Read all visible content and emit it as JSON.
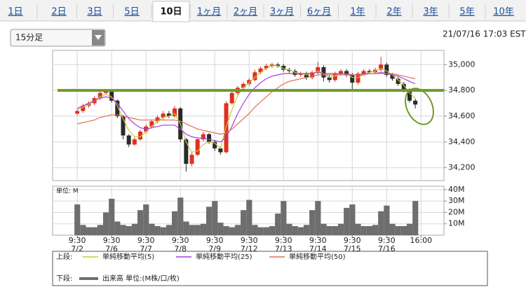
{
  "tabs": [
    "1日",
    "2日",
    "3日",
    "5日",
    "10日",
    "1ヶ月",
    "2ヶ月",
    "3ヶ月",
    "6ヶ月",
    "1年",
    "2年",
    "3年",
    "5年",
    "10年"
  ],
  "active_tab": 4,
  "interval_select": "15分足",
  "timestamp": "21/07/16 17:03 EST",
  "legend": {
    "upper_label": "上段:",
    "lower_label": "下段:"
  },
  "chart_data": [
    {
      "type": "candlestick",
      "x": [
        0,
        1,
        2,
        3,
        4,
        5,
        6,
        7,
        8,
        9,
        10,
        11,
        12,
        13,
        14,
        15,
        16,
        17,
        18,
        19,
        20,
        21,
        22,
        23,
        24,
        25,
        26,
        27,
        28,
        29,
        30,
        31,
        32,
        33,
        34,
        35,
        36,
        37,
        38,
        39,
        40,
        41,
        42,
        43,
        44,
        45,
        46,
        47,
        48,
        49,
        50,
        51,
        52,
        53,
        54,
        55,
        56,
        57,
        58,
        59
      ],
      "xlim": [
        -4.3,
        64
      ],
      "open": [
        34620,
        34640,
        34680,
        34700,
        34740,
        34780,
        34790,
        34720,
        34600,
        34450,
        34380,
        34420,
        34480,
        34520,
        34560,
        34590,
        34620,
        34600,
        34660,
        34420,
        34230,
        34300,
        34420,
        34460,
        34400,
        34350,
        34320,
        34700,
        34780,
        34820,
        34850,
        34880,
        34940,
        34970,
        34990,
        35000,
        34990,
        34960,
        34950,
        34920,
        34930,
        34900,
        34940,
        34980,
        34900,
        34880,
        34930,
        34950,
        34920,
        34860,
        34930,
        34950,
        34940,
        34960,
        35000,
        34920,
        34890,
        34850,
        34800,
        34720
      ],
      "high": [
        34655,
        34695,
        34715,
        34755,
        34795,
        34810,
        34805,
        34730,
        34610,
        34460,
        34435,
        34495,
        34535,
        34575,
        34605,
        34640,
        34640,
        34680,
        34670,
        34430,
        34320,
        34435,
        34480,
        34470,
        34415,
        34365,
        34715,
        34795,
        34835,
        34865,
        34895,
        34960,
        34985,
        35005,
        35015,
        35015,
        35005,
        34975,
        34965,
        34945,
        34945,
        34955,
        35020,
        34995,
        34915,
        34945,
        34965,
        34965,
        34935,
        34945,
        34965,
        34965,
        34975,
        35060,
        35015,
        34935,
        34905,
        34865,
        34815,
        34735
      ],
      "low": [
        34605,
        34625,
        34665,
        34685,
        34725,
        34765,
        34705,
        34585,
        34420,
        34360,
        34370,
        34410,
        34465,
        34505,
        34545,
        34575,
        34585,
        34590,
        34400,
        34170,
        34210,
        34290,
        34405,
        34385,
        34330,
        34300,
        34310,
        34690,
        34765,
        34805,
        34835,
        34870,
        34925,
        34955,
        34975,
        34975,
        34945,
        34935,
        34905,
        34905,
        34880,
        34885,
        34925,
        34870,
        34860,
        34865,
        34915,
        34905,
        34800,
        34845,
        34915,
        34925,
        34925,
        34945,
        34905,
        34875,
        34835,
        34785,
        34705,
        34660
      ],
      "close": [
        34640,
        34680,
        34700,
        34740,
        34780,
        34790,
        34720,
        34600,
        34450,
        34380,
        34420,
        34480,
        34520,
        34560,
        34590,
        34620,
        34600,
        34660,
        34420,
        34230,
        34300,
        34420,
        34460,
        34400,
        34350,
        34320,
        34700,
        34780,
        34820,
        34850,
        34880,
        34940,
        34970,
        34990,
        35000,
        34990,
        34960,
        34950,
        34920,
        34930,
        34900,
        34940,
        34980,
        34900,
        34880,
        34930,
        34950,
        34920,
        34860,
        34930,
        34950,
        34940,
        34960,
        35000,
        34920,
        34890,
        34850,
        34800,
        34720,
        34690
      ],
      "up_color": "#e0301e",
      "down_color": "#2a2a2a",
      "series": [
        {
          "name": "単純移動平均(5)",
          "color": "#c4cc3a",
          "values": [
            34650,
            34670,
            34690,
            34720,
            34750,
            34770,
            34750,
            34680,
            34580,
            34490,
            34440,
            34440,
            34480,
            34520,
            34560,
            34590,
            34600,
            34620,
            34540,
            34400,
            34320,
            34330,
            34380,
            34400,
            34390,
            34350,
            34520,
            34650,
            34760,
            34820,
            34860,
            34900,
            34940,
            34970,
            34990,
            34990,
            34970,
            34960,
            34940,
            34930,
            34920,
            34930,
            34950,
            34930,
            34900,
            34910,
            34930,
            34930,
            34900,
            34900,
            34920,
            34940,
            34950,
            34970,
            34950,
            34920,
            34880,
            34840,
            34780,
            34740
          ]
        },
        {
          "name": "単純移動平均(25)",
          "color": "#a040e0",
          "values": [
            34660,
            34680,
            34700,
            34720,
            34740,
            34750,
            34740,
            34700,
            34640,
            34580,
            34540,
            34510,
            34500,
            34510,
            34520,
            34530,
            34530,
            34530,
            34500,
            34460,
            34440,
            34430,
            34430,
            34420,
            34410,
            34400,
            34440,
            34520,
            34620,
            34700,
            34770,
            34820,
            34860,
            34890,
            34910,
            34920,
            34930,
            34930,
            34930,
            34930,
            34930,
            34930,
            34940,
            34930,
            34930,
            34930,
            34930,
            34930,
            34920,
            34920,
            34930,
            34930,
            34930,
            34940,
            34930,
            34920,
            34910,
            34890,
            34870,
            34850
          ]
        },
        {
          "name": "単純移動平均(50)",
          "color": "#e07050",
          "values": [
            34540,
            34550,
            34560,
            34570,
            34590,
            34600,
            34610,
            34610,
            34600,
            34590,
            34580,
            34570,
            34570,
            34570,
            34570,
            34570,
            34570,
            34570,
            34560,
            34540,
            34520,
            34500,
            34490,
            34480,
            34470,
            34460,
            34470,
            34500,
            34540,
            34580,
            34620,
            34670,
            34710,
            34750,
            34790,
            34820,
            34850,
            34870,
            34880,
            34890,
            34900,
            34910,
            34920,
            34920,
            34920,
            34920,
            34920,
            34920,
            34920,
            34920,
            34920,
            34930,
            34930,
            34930,
            34930,
            34930,
            34920,
            34910,
            34900,
            34890
          ]
        }
      ],
      "hline": {
        "value": 34800,
        "color": "#6f9a2a"
      },
      "ylim": [
        34100,
        35110
      ],
      "yticks": [
        {
          "value": 34200,
          "label": "34,200"
        },
        {
          "value": 34400,
          "label": "34,400"
        },
        {
          "value": 34600,
          "label": "34,600"
        },
        {
          "value": 34800,
          "label": "34,800"
        },
        {
          "value": 35000,
          "label": "35,000"
        }
      ],
      "grid": true
    },
    {
      "type": "bar",
      "unit_label": "単位: M",
      "name": "出来高 単位:(M株/口/枚)",
      "color": "#6e6e6e",
      "values": [
        27,
        9,
        7,
        7,
        9,
        20,
        32,
        12,
        9,
        8,
        10,
        22,
        27,
        10,
        8,
        7,
        9,
        21,
        33,
        12,
        9,
        9,
        10,
        25,
        30,
        11,
        8,
        7,
        9,
        22,
        31,
        9,
        7,
        7,
        8,
        19,
        30,
        10,
        8,
        7,
        9,
        22,
        30,
        10,
        8,
        8,
        10,
        24,
        27,
        10,
        8,
        8,
        9,
        21,
        26,
        10,
        8,
        8,
        10,
        30
      ],
      "ylim": [
        0,
        43
      ],
      "yticks": [
        {
          "value": 10,
          "label": "10M"
        },
        {
          "value": 20,
          "label": "20M"
        },
        {
          "value": 30,
          "label": "30M"
        },
        {
          "value": 40,
          "label": "40M"
        }
      ],
      "xticks": [
        {
          "value": 0,
          "label": [
            "9:30",
            "7/2"
          ]
        },
        {
          "value": 6,
          "label": [
            "9:30",
            "7/6"
          ]
        },
        {
          "value": 12,
          "label": [
            "9:30",
            "7/7"
          ]
        },
        {
          "value": 18,
          "label": [
            "9:30",
            "7/8"
          ]
        },
        {
          "value": 24,
          "label": [
            "9:30",
            "7/9"
          ]
        },
        {
          "value": 30,
          "label": [
            "9:30",
            "7/12"
          ]
        },
        {
          "value": 36,
          "label": [
            "9:30",
            "7/13"
          ]
        },
        {
          "value": 42,
          "label": [
            "9:30",
            "7/14"
          ]
        },
        {
          "value": 48,
          "label": [
            "9:30",
            "7/15"
          ]
        },
        {
          "value": 54,
          "label": [
            "9:30",
            "7/16"
          ]
        },
        {
          "value": 60,
          "label": "16:00"
        }
      ],
      "grid": true
    }
  ]
}
